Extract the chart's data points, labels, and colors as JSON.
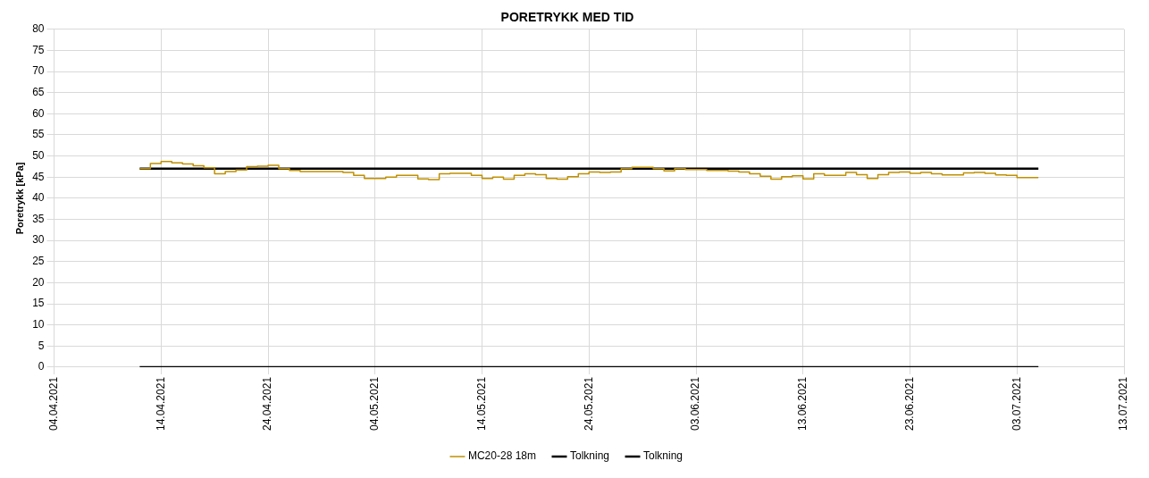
{
  "chart_data": {
    "type": "step",
    "title": "PORETRYKK MED TID",
    "ylabel": "Poretrykk [kPa]",
    "x": [
      "2021-04-12",
      "2021-04-13",
      "2021-04-14",
      "2021-04-15",
      "2021-04-16",
      "2021-04-17",
      "2021-04-18",
      "2021-04-19",
      "2021-04-20",
      "2021-04-21",
      "2021-04-22",
      "2021-04-23",
      "2021-04-24",
      "2021-04-25",
      "2021-04-26",
      "2021-04-27",
      "2021-04-28",
      "2021-04-29",
      "2021-04-30",
      "2021-05-01",
      "2021-05-02",
      "2021-05-03",
      "2021-05-04",
      "2021-05-05",
      "2021-05-06",
      "2021-05-07",
      "2021-05-08",
      "2021-05-09",
      "2021-05-10",
      "2021-05-11",
      "2021-05-12",
      "2021-05-13",
      "2021-05-14",
      "2021-05-15",
      "2021-05-16",
      "2021-05-17",
      "2021-05-18",
      "2021-05-19",
      "2021-05-20",
      "2021-05-21",
      "2021-05-22",
      "2021-05-23",
      "2021-05-24",
      "2021-05-25",
      "2021-05-26",
      "2021-05-27",
      "2021-05-28",
      "2021-05-29",
      "2021-05-30",
      "2021-05-31",
      "2021-06-01",
      "2021-06-02",
      "2021-06-03",
      "2021-06-04",
      "2021-06-05",
      "2021-06-06",
      "2021-06-07",
      "2021-06-08",
      "2021-06-09",
      "2021-06-10",
      "2021-06-11",
      "2021-06-12",
      "2021-06-13",
      "2021-06-14",
      "2021-06-15",
      "2021-06-16",
      "2021-06-17",
      "2021-06-18",
      "2021-06-19",
      "2021-06-20",
      "2021-06-21",
      "2021-06-22",
      "2021-06-23",
      "2021-06-24",
      "2021-06-25",
      "2021-06-26",
      "2021-06-27",
      "2021-06-28",
      "2021-06-29",
      "2021-06-30",
      "2021-07-01",
      "2021-07-02",
      "2021-07-03",
      "2021-07-04",
      "2021-07-05"
    ],
    "series": [
      {
        "name": "MC20-28 18m",
        "color": "#bf9000",
        "values": [
          47.0,
          47.0,
          48.2,
          48.7,
          48.4,
          48.1,
          47.7,
          47.2,
          45.8,
          46.3,
          46.7,
          47.5,
          47.6,
          47.8,
          47.0,
          46.6,
          46.3,
          46.3,
          46.3,
          46.3,
          46.1,
          45.4,
          44.7,
          44.7,
          45.0,
          45.4,
          45.4,
          44.6,
          44.4,
          45.8,
          45.9,
          45.9,
          45.4,
          44.7,
          45.0,
          44.5,
          45.4,
          45.8,
          45.6,
          44.7,
          44.5,
          45.1,
          45.8,
          46.2,
          46.1,
          46.2,
          47.0,
          47.3,
          47.3,
          47.0,
          46.5,
          47.0,
          46.8,
          46.8,
          46.6,
          46.6,
          46.4,
          46.2,
          45.8,
          45.2,
          44.5,
          45.1,
          45.3,
          44.6,
          45.8,
          45.4,
          45.4,
          46.1,
          45.6,
          44.7,
          45.6,
          46.1,
          46.2,
          45.9,
          46.1,
          45.8,
          45.5,
          45.5,
          46.0,
          46.1,
          45.9,
          45.5,
          45.4,
          44.9,
          44.9
        ]
      },
      {
        "name": "Tolkning",
        "type": "line",
        "color": "#000000",
        "x": [
          "2021-04-12",
          "2021-07-05"
        ],
        "values": [
          47,
          47
        ]
      },
      {
        "name": "Tolkning",
        "type": "line",
        "color": "#000000",
        "x": [
          "2021-04-12",
          "2021-07-05"
        ],
        "values": [
          0,
          0
        ]
      }
    ],
    "xlim": [
      "2021-04-04",
      "2021-07-13"
    ],
    "xticks": [
      {
        "value": "2021-04-04",
        "label": "04.04.2021"
      },
      {
        "value": "2021-04-14",
        "label": "14.04.2021"
      },
      {
        "value": "2021-04-24",
        "label": "24.04.2021"
      },
      {
        "value": "2021-05-04",
        "label": "04.05.2021"
      },
      {
        "value": "2021-05-14",
        "label": "14.05.2021"
      },
      {
        "value": "2021-05-24",
        "label": "24.05.2021"
      },
      {
        "value": "2021-06-03",
        "label": "03.06.2021"
      },
      {
        "value": "2021-06-13",
        "label": "13.06.2021"
      },
      {
        "value": "2021-06-23",
        "label": "23.06.2021"
      },
      {
        "value": "2021-07-03",
        "label": "03.07.2021"
      },
      {
        "value": "2021-07-13",
        "label": "13.07.2021"
      }
    ],
    "ylim": [
      0,
      80
    ],
    "yticks": [
      0,
      5,
      10,
      15,
      20,
      25,
      30,
      35,
      40,
      45,
      50,
      55,
      60,
      65,
      70,
      75,
      80
    ],
    "grid": true,
    "legend": "bottom",
    "marker": "none",
    "line_style": "solid"
  }
}
